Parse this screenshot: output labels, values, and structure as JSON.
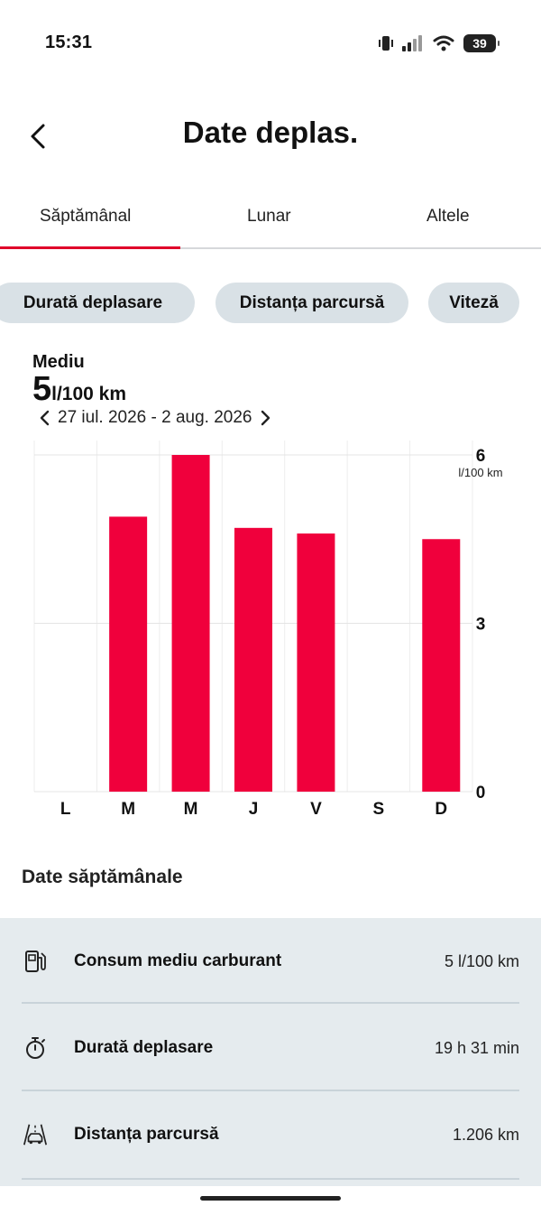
{
  "status_bar": {
    "time": "15:31",
    "battery": "39"
  },
  "header": {
    "title": "Date deplas."
  },
  "tabs": [
    {
      "label": "Săptămânal",
      "active": true
    },
    {
      "label": "Lunar",
      "active": false
    },
    {
      "label": "Altele",
      "active": false
    }
  ],
  "chips": [
    {
      "label": "Durată deplasare"
    },
    {
      "label": "Distanța parcursă"
    },
    {
      "label": "Viteză"
    }
  ],
  "summary": {
    "label": "Mediu",
    "value": "5",
    "unit": "l/100 km",
    "date_range": "27 iul. 2026 - 2 aug. 2026"
  },
  "chart_data": {
    "type": "bar",
    "categories": [
      "L",
      "M",
      "M",
      "J",
      "V",
      "S",
      "D"
    ],
    "values": [
      0,
      4.9,
      6.0,
      4.7,
      4.6,
      0,
      4.5
    ],
    "yticks": [
      "0",
      "3",
      "6"
    ],
    "ylim": [
      0,
      6
    ],
    "yunit": "l/100 km",
    "bar_color": "#f0003c",
    "grid": true
  },
  "weekly": {
    "title": "Date săptămânale",
    "rows": [
      {
        "icon": "fuel-pump-icon",
        "label": "Consum mediu carburant",
        "value": "5 l/100 km"
      },
      {
        "icon": "stopwatch-icon",
        "label": "Durată deplasare",
        "value": "19 h 31 min"
      },
      {
        "icon": "car-road-icon",
        "label": "Distanța parcursă",
        "value": "1.206 km"
      }
    ]
  },
  "colors": {
    "accent": "#e0002a",
    "chip_bg": "#d9e1e6",
    "panel_bg": "#e5ebee"
  }
}
